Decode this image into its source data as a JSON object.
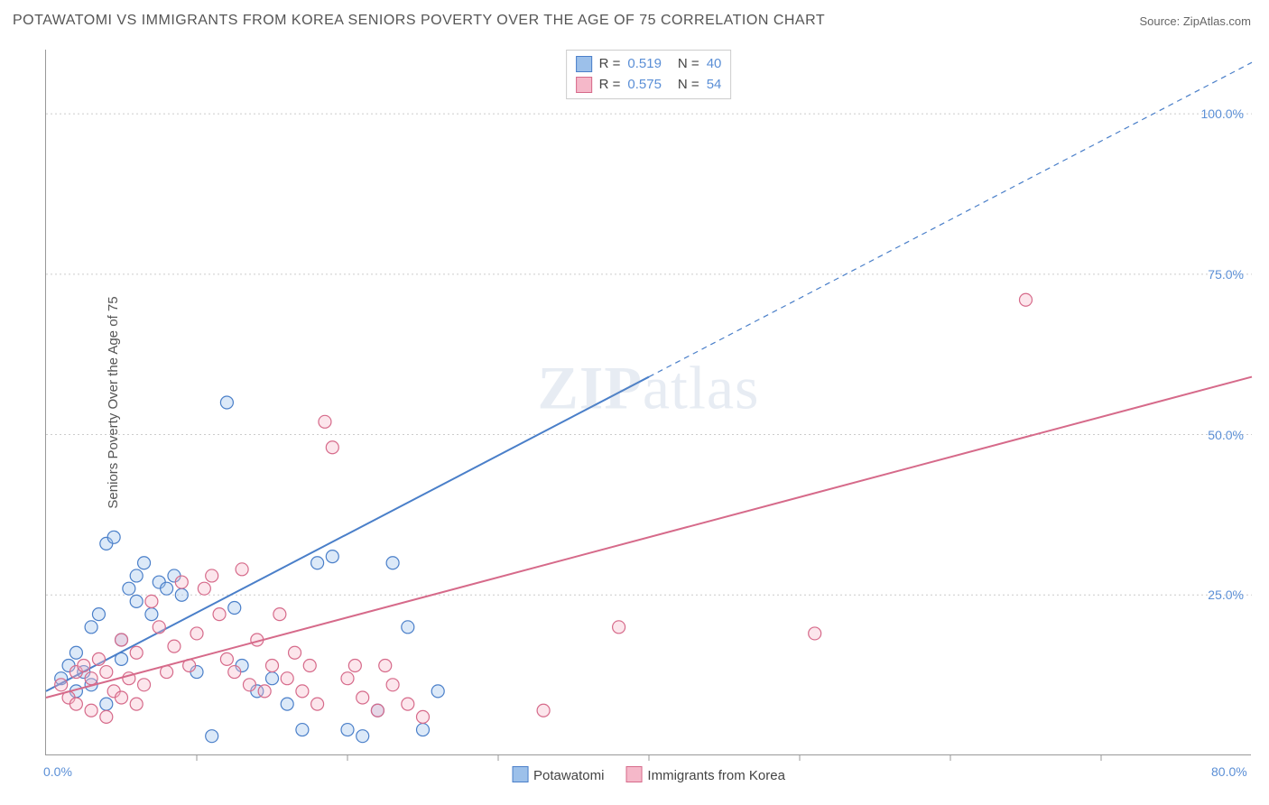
{
  "title": "POTAWATOMI VS IMMIGRANTS FROM KOREA SENIORS POVERTY OVER THE AGE OF 75 CORRELATION CHART",
  "source_prefix": "Source: ",
  "source_name": "ZipAtlas.com",
  "ylabel": "Seniors Poverty Over the Age of 75",
  "watermark": {
    "bold": "ZIP",
    "light": "atlas"
  },
  "chart": {
    "type": "scatter",
    "xlim": [
      0,
      80
    ],
    "ylim": [
      0,
      110
    ],
    "x_origin_label": "0.0%",
    "x_max_label": "80.0%",
    "y_grid": [
      25,
      50,
      75,
      100
    ],
    "y_grid_labels": [
      "25.0%",
      "50.0%",
      "75.0%",
      "100.0%"
    ],
    "x_ticks": [
      10,
      20,
      30,
      40,
      50,
      60,
      70
    ],
    "background_color": "#ffffff",
    "grid_color": "#cccccc",
    "axis_color": "#999999",
    "marker_radius": 7,
    "marker_stroke_width": 1.2,
    "marker_fill_opacity": 0.35,
    "line_width": 2,
    "series": [
      {
        "name": "Potawatomi",
        "color_stroke": "#4a7fc9",
        "color_fill": "#9cc0ea",
        "R": "0.519",
        "N": "40",
        "trend": {
          "x1": 0,
          "y1": 10,
          "x2": 80,
          "y2": 108,
          "solid_until_x": 40
        },
        "points": [
          [
            1,
            12
          ],
          [
            1.5,
            14
          ],
          [
            2,
            10
          ],
          [
            2,
            16
          ],
          [
            2.5,
            13
          ],
          [
            3,
            11
          ],
          [
            3,
            20
          ],
          [
            3.5,
            22
          ],
          [
            4,
            8
          ],
          [
            4,
            33
          ],
          [
            4.5,
            34
          ],
          [
            5,
            18
          ],
          [
            5,
            15
          ],
          [
            5.5,
            26
          ],
          [
            6,
            28
          ],
          [
            6,
            24
          ],
          [
            6.5,
            30
          ],
          [
            7,
            22
          ],
          [
            7.5,
            27
          ],
          [
            8,
            26
          ],
          [
            8.5,
            28
          ],
          [
            9,
            25
          ],
          [
            10,
            13
          ],
          [
            11,
            3
          ],
          [
            12,
            55
          ],
          [
            12.5,
            23
          ],
          [
            13,
            14
          ],
          [
            14,
            10
          ],
          [
            15,
            12
          ],
          [
            16,
            8
          ],
          [
            17,
            4
          ],
          [
            18,
            30
          ],
          [
            19,
            31
          ],
          [
            20,
            4
          ],
          [
            21,
            3
          ],
          [
            22,
            7
          ],
          [
            23,
            30
          ],
          [
            24,
            20
          ],
          [
            25,
            4
          ],
          [
            26,
            10
          ]
        ]
      },
      {
        "name": "Immigrants from Korea",
        "color_stroke": "#d66a8a",
        "color_fill": "#f5b8c9",
        "R": "0.575",
        "N": "54",
        "trend": {
          "x1": 0,
          "y1": 9,
          "x2": 80,
          "y2": 59,
          "solid_until_x": 80
        },
        "points": [
          [
            1,
            11
          ],
          [
            1.5,
            9
          ],
          [
            2,
            13
          ],
          [
            2,
            8
          ],
          [
            2.5,
            14
          ],
          [
            3,
            7
          ],
          [
            3,
            12
          ],
          [
            3.5,
            15
          ],
          [
            4,
            6
          ],
          [
            4,
            13
          ],
          [
            4.5,
            10
          ],
          [
            5,
            18
          ],
          [
            5,
            9
          ],
          [
            5.5,
            12
          ],
          [
            6,
            8
          ],
          [
            6,
            16
          ],
          [
            6.5,
            11
          ],
          [
            7,
            24
          ],
          [
            7.5,
            20
          ],
          [
            8,
            13
          ],
          [
            8.5,
            17
          ],
          [
            9,
            27
          ],
          [
            9.5,
            14
          ],
          [
            10,
            19
          ],
          [
            10.5,
            26
          ],
          [
            11,
            28
          ],
          [
            11.5,
            22
          ],
          [
            12,
            15
          ],
          [
            12.5,
            13
          ],
          [
            13,
            29
          ],
          [
            13.5,
            11
          ],
          [
            14,
            18
          ],
          [
            14.5,
            10
          ],
          [
            15,
            14
          ],
          [
            15.5,
            22
          ],
          [
            16,
            12
          ],
          [
            16.5,
            16
          ],
          [
            17,
            10
          ],
          [
            17.5,
            14
          ],
          [
            18,
            8
          ],
          [
            18.5,
            52
          ],
          [
            19,
            48
          ],
          [
            20,
            12
          ],
          [
            20.5,
            14
          ],
          [
            21,
            9
          ],
          [
            22,
            7
          ],
          [
            22.5,
            14
          ],
          [
            23,
            11
          ],
          [
            24,
            8
          ],
          [
            25,
            6
          ],
          [
            33,
            7
          ],
          [
            38,
            20
          ],
          [
            51,
            19
          ],
          [
            65,
            71
          ]
        ]
      }
    ]
  },
  "legend_rn": {
    "r_label": "R  =",
    "n_label": "N  ="
  },
  "legend_bottom_labels": [
    "Potawatomi",
    "Immigrants from Korea"
  ]
}
